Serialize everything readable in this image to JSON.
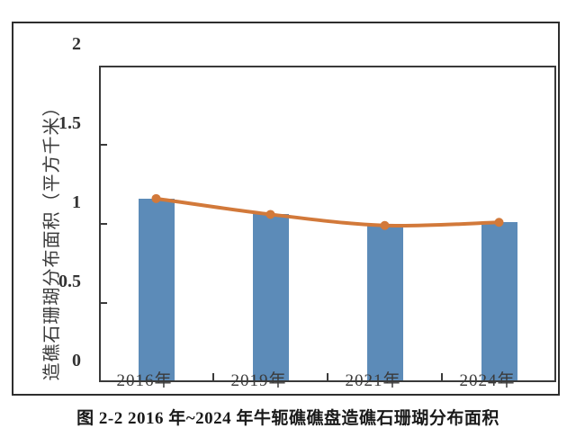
{
  "figure": {
    "caption": "图 2-2 2016 年~2024 年牛轭礁礁盘造礁石珊瑚分布面积"
  },
  "colors": {
    "bar": "#5C8BB8",
    "line": "#D2793A",
    "axis": "#3A3A3A",
    "text": "#333333"
  },
  "chart_data": {
    "type": "bar",
    "categories": [
      "2016年",
      "2019年",
      "2021年",
      "2024年"
    ],
    "series": [
      {
        "name": "bar-series",
        "type": "bar",
        "values": [
          1.16,
          1.06,
          0.99,
          1.01
        ]
      },
      {
        "name": "line-series",
        "type": "line",
        "values": [
          1.16,
          1.06,
          0.99,
          1.01
        ]
      }
    ],
    "title": "",
    "xlabel": "",
    "ylabel": "造礁石珊瑚分布面积（平方千米）",
    "ylim": [
      0,
      2
    ],
    "yticks": [
      0,
      0.5,
      1,
      1.5,
      2
    ],
    "ytick_labels": [
      "0",
      "0.5",
      "1",
      "1.5",
      "2"
    ],
    "inner_ytick_values": [
      0.5,
      1,
      1.5
    ],
    "grid": false,
    "legend": false
  }
}
